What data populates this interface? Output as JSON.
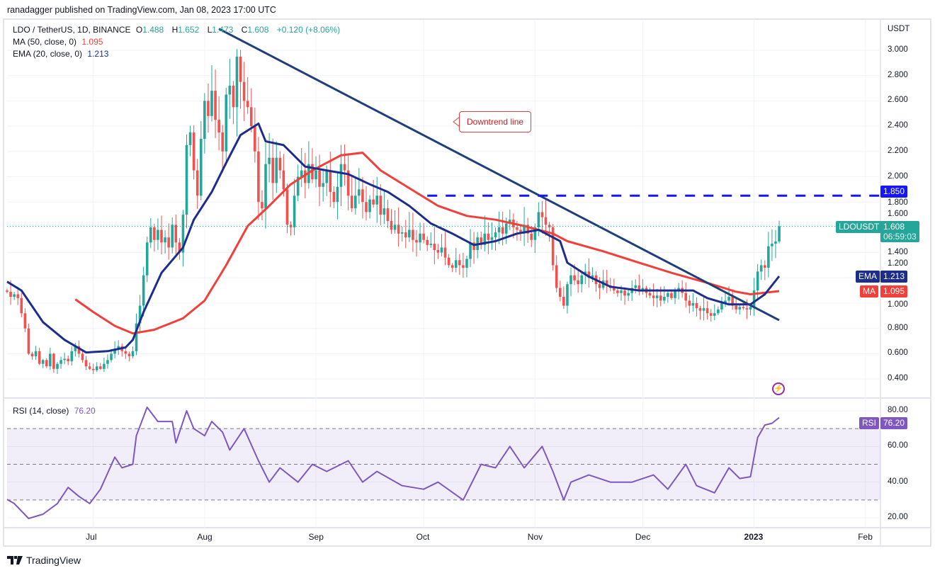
{
  "header": {
    "published": "ranadagger published on TradingView.com, Jan 08, 2023 17:00 UTC"
  },
  "legend": {
    "symbol": "LDO / TetherUS, 1D, BINANCE",
    "o_label": "O",
    "o": "1.488",
    "h_label": "H",
    "h": "1.652",
    "l_label": "L",
    "l": "1.473",
    "c_label": "C",
    "c": "1.608",
    "change": "+0.120 (+8.06%)",
    "ma": "MA (50, close, 0)",
    "ma_value": "1.095",
    "ema": "EMA (20, close, 0)",
    "ema_value": "1.213",
    "rsi": "RSI (14, close)",
    "rsi_value": "76.20"
  },
  "axis": {
    "currency": "USDT",
    "price_ticks": [
      "0.400",
      "0.600",
      "0.800",
      "1.000",
      "1.200",
      "1.400",
      "1.600",
      "1.800",
      "2.000",
      "2.200",
      "2.400",
      "2.600",
      "2.800",
      "3.000"
    ],
    "rsi_ticks": [
      "20.00",
      "40.00",
      "60.00",
      "80.00"
    ],
    "time_labels": [
      {
        "label": "Jul",
        "day": 24
      },
      {
        "label": "Aug",
        "day": 55
      },
      {
        "label": "Sep",
        "day": 86
      },
      {
        "label": "Oct",
        "day": 116
      },
      {
        "label": "Nov",
        "day": 147
      },
      {
        "label": "Dec",
        "day": 177
      },
      {
        "label": "2023",
        "day": 208
      },
      {
        "label": "Feb",
        "day": 239
      }
    ]
  },
  "tags": {
    "level": "1.850",
    "symbol": "LDOUSDT",
    "price": "1.608",
    "countdown": "06:59:03",
    "ema_label": "EMA",
    "ema": "1.213",
    "ma_label": "MA",
    "ma": "1.095",
    "rsi_label": "RSI",
    "rsi": "76.20"
  },
  "annotation": {
    "text": "Downtrend line"
  },
  "footer": {
    "brand": "TradingView"
  },
  "colors": {
    "up": "#26a69a",
    "down": "#ef5350",
    "ema": "#1c2d8c",
    "ma": "#f23f3a",
    "trend": "#1f3e7c",
    "level": "#1515ff",
    "rsi": "#7e57c2"
  },
  "chart_data": {
    "type": "candlestick",
    "title": "LDO / TetherUS, 1D, BINANCE",
    "x_start": "Jun 07, 2022",
    "x_end": "Jan 08, 2023",
    "ylabel": "USDT",
    "ylim": [
      0.3,
      3.2
    ],
    "close": [
      1.09,
      1.05,
      1.07,
      1.04,
      0.92,
      0.8,
      0.6,
      0.58,
      0.62,
      0.52,
      0.55,
      0.5,
      0.6,
      0.48,
      0.52,
      0.55,
      0.56,
      0.54,
      0.62,
      0.66,
      0.6,
      0.55,
      0.5,
      0.48,
      0.47,
      0.5,
      0.48,
      0.52,
      0.55,
      0.6,
      0.64,
      0.66,
      0.62,
      0.6,
      0.58,
      0.62,
      0.84,
      0.98,
      1.22,
      1.48,
      1.6,
      1.5,
      1.58,
      1.48,
      1.52,
      1.44,
      1.62,
      1.48,
      1.4,
      1.7,
      2.25,
      2.35,
      2.05,
      1.85,
      2.3,
      2.6,
      2.48,
      2.68,
      2.45,
      2.35,
      2.2,
      2.65,
      2.72,
      2.55,
      2.95,
      2.75,
      2.6,
      2.55,
      2.4,
      2.2,
      1.8,
      1.75,
      2.1,
      2.15,
      1.95,
      2.15,
      2.05,
      1.9,
      1.62,
      1.6,
      1.85,
      2.0,
      2.05,
      1.95,
      2.1,
      1.98,
      2.05,
      1.92,
      1.95,
      2.05,
      1.88,
      1.8,
      1.92,
      2.1,
      2.05,
      1.85,
      1.75,
      1.85,
      1.9,
      1.8,
      1.72,
      1.82,
      1.78,
      1.85,
      1.7,
      1.75,
      1.65,
      1.58,
      1.62,
      1.55,
      1.56,
      1.52,
      1.58,
      1.5,
      1.48,
      1.55,
      1.5,
      1.46,
      1.47,
      1.42,
      1.4,
      1.44,
      1.36,
      1.3,
      1.28,
      1.34,
      1.3,
      1.28,
      1.35,
      1.48,
      1.42,
      1.52,
      1.46,
      1.55,
      1.5,
      1.52,
      1.56,
      1.6,
      1.55,
      1.63,
      1.66,
      1.6,
      1.58,
      1.55,
      1.62,
      1.55,
      1.5,
      1.6,
      1.72,
      1.68,
      1.62,
      1.6,
      1.3,
      1.12,
      1.05,
      0.98,
      1.15,
      1.22,
      1.18,
      1.15,
      1.22,
      1.25,
      1.2,
      1.22,
      1.15,
      1.12,
      1.18,
      1.14,
      1.12,
      1.1,
      1.08,
      1.1,
      1.06,
      1.08,
      1.12,
      1.14,
      1.1,
      1.12,
      1.08,
      1.06,
      1.04,
      1.06,
      1.02,
      1.05,
      1.08,
      1.04,
      1.1,
      1.12,
      1.08,
      1.02,
      0.98,
      1.0,
      0.96,
      0.94,
      0.96,
      0.92,
      0.9,
      0.92,
      0.95,
      1.0,
      1.02,
      1.05,
      0.98,
      0.95,
      0.97,
      0.96,
      0.95,
      0.97,
      1.1,
      1.25,
      1.3,
      1.28,
      1.45,
      1.47,
      1.488,
      1.608
    ],
    "first_open": 1.1,
    "last_candle": {
      "open": 1.488,
      "high": 1.652,
      "low": 1.473,
      "close": 1.608
    },
    "ema20": [
      [
        0,
        1.17
      ],
      [
        4,
        1.1
      ],
      [
        10,
        0.85
      ],
      [
        16,
        0.71
      ],
      [
        22,
        0.61
      ],
      [
        28,
        0.62
      ],
      [
        33,
        0.65
      ],
      [
        35,
        0.71
      ],
      [
        38,
        0.93
      ],
      [
        43,
        1.24
      ],
      [
        49,
        1.44
      ],
      [
        52,
        1.66
      ],
      [
        57,
        1.88
      ],
      [
        61,
        2.11
      ],
      [
        65,
        2.33
      ],
      [
        70,
        2.42
      ],
      [
        72,
        2.28
      ],
      [
        77,
        2.25
      ],
      [
        83,
        2.08
      ],
      [
        89,
        2.05
      ],
      [
        95,
        2.02
      ],
      [
        101,
        1.94
      ],
      [
        106,
        1.88
      ],
      [
        112,
        1.77
      ],
      [
        118,
        1.63
      ],
      [
        124,
        1.55
      ],
      [
        130,
        1.46
      ],
      [
        136,
        1.49
      ],
      [
        142,
        1.55
      ],
      [
        148,
        1.58
      ],
      [
        154,
        1.49
      ],
      [
        156,
        1.32
      ],
      [
        162,
        1.21
      ],
      [
        168,
        1.13
      ],
      [
        176,
        1.1
      ],
      [
        183,
        1.1
      ],
      [
        191,
        1.1
      ],
      [
        195,
        1.04
      ],
      [
        201,
        0.99
      ],
      [
        207,
        0.99
      ],
      [
        211,
        1.07
      ],
      [
        215,
        1.213
      ]
    ],
    "ma50": [
      [
        19,
        1.03
      ],
      [
        24,
        0.93
      ],
      [
        30,
        0.82
      ],
      [
        35,
        0.76
      ],
      [
        41,
        0.79
      ],
      [
        49,
        0.88
      ],
      [
        55,
        1.02
      ],
      [
        61,
        1.3
      ],
      [
        67,
        1.61
      ],
      [
        73,
        1.77
      ],
      [
        79,
        1.94
      ],
      [
        85,
        2.05
      ],
      [
        93,
        2.17
      ],
      [
        99,
        2.19
      ],
      [
        104,
        2.05
      ],
      [
        112,
        1.91
      ],
      [
        120,
        1.77
      ],
      [
        128,
        1.69
      ],
      [
        136,
        1.66
      ],
      [
        144,
        1.61
      ],
      [
        152,
        1.55
      ],
      [
        156,
        1.49
      ],
      [
        166,
        1.41
      ],
      [
        176,
        1.32
      ],
      [
        185,
        1.24
      ],
      [
        195,
        1.16
      ],
      [
        203,
        1.09
      ],
      [
        207,
        1.07
      ],
      [
        215,
        1.095
      ]
    ],
    "downtrend_line": [
      [
        59,
        3.17
      ],
      [
        215,
        0.865
      ]
    ],
    "resistance_level": {
      "value": 1.85,
      "from_day": 117
    },
    "rsi": {
      "ylim": [
        14,
        86
      ],
      "overbought": 70,
      "mid": 50,
      "oversold": 30,
      "values": [
        [
          0,
          30.3
        ],
        [
          2,
          28
        ],
        [
          6,
          19.6
        ],
        [
          10,
          22
        ],
        [
          14,
          28
        ],
        [
          17,
          37
        ],
        [
          20,
          32
        ],
        [
          23,
          28
        ],
        [
          26,
          36
        ],
        [
          30,
          54
        ],
        [
          32,
          48
        ],
        [
          35,
          50
        ],
        [
          36,
          66
        ],
        [
          39,
          82
        ],
        [
          42,
          74
        ],
        [
          46,
          74
        ],
        [
          47,
          62
        ],
        [
          50,
          80
        ],
        [
          52,
          70
        ],
        [
          55,
          66
        ],
        [
          57,
          74
        ],
        [
          60,
          68
        ],
        [
          62,
          58
        ],
        [
          66,
          70
        ],
        [
          70,
          52
        ],
        [
          73,
          40
        ],
        [
          76,
          48
        ],
        [
          81,
          40
        ],
        [
          85,
          50
        ],
        [
          89,
          46
        ],
        [
          95,
          52
        ],
        [
          99,
          40
        ],
        [
          103,
          46
        ],
        [
          110,
          38
        ],
        [
          116,
          36
        ],
        [
          120,
          40
        ],
        [
          127,
          30
        ],
        [
          132,
          50
        ],
        [
          136,
          48
        ],
        [
          140,
          60
        ],
        [
          144,
          48
        ],
        [
          149,
          60
        ],
        [
          152,
          46
        ],
        [
          155,
          30
        ],
        [
          157,
          40
        ],
        [
          162,
          44
        ],
        [
          168,
          40
        ],
        [
          174,
          40
        ],
        [
          180,
          44
        ],
        [
          184,
          36
        ],
        [
          189,
          50
        ],
        [
          192,
          38
        ],
        [
          197,
          34
        ],
        [
          201,
          48
        ],
        [
          204,
          42
        ],
        [
          207,
          43
        ],
        [
          209,
          65
        ],
        [
          211,
          72
        ],
        [
          213,
          73
        ],
        [
          215,
          76.2
        ]
      ]
    }
  }
}
